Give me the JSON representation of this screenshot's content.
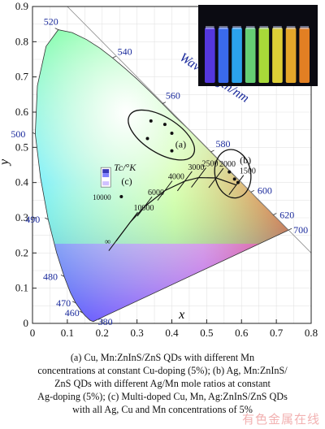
{
  "chart_data": {
    "type": "scatter",
    "title": "",
    "xlabel": "x",
    "ylabel": "y",
    "xlim": [
      0,
      0.8
    ],
    "ylim": [
      0,
      0.9
    ],
    "x_ticks": [
      "0",
      "0.1",
      "0.2",
      "0.3",
      "0.4",
      "0.5",
      "0.6",
      "0.7",
      "0.8"
    ],
    "y_ticks": [
      "0",
      "0.1",
      "0.2",
      "0.3",
      "0.4",
      "0.5",
      "0.6",
      "0.7",
      "0.8",
      "0.9"
    ],
    "grid": true,
    "spectral_locus": [
      {
        "nm": "380",
        "x": 0.174,
        "y": 0.005
      },
      {
        "nm": "460",
        "x": 0.144,
        "y": 0.03
      },
      {
        "nm": "470",
        "x": 0.124,
        "y": 0.058
      },
      {
        "nm": "480",
        "x": 0.091,
        "y": 0.133
      },
      {
        "nm": "490",
        "x": 0.045,
        "y": 0.295
      },
      {
        "nm": "500",
        "x": 0.008,
        "y": 0.538
      },
      {
        "nm": "520",
        "x": 0.074,
        "y": 0.834
      },
      {
        "nm": "540",
        "x": 0.23,
        "y": 0.754
      },
      {
        "nm": "560",
        "x": 0.373,
        "y": 0.624
      },
      {
        "nm": "580",
        "x": 0.512,
        "y": 0.487
      },
      {
        "nm": "600",
        "x": 0.627,
        "y": 0.373
      },
      {
        "nm": "620",
        "x": 0.691,
        "y": 0.308
      },
      {
        "nm": "700",
        "x": 0.735,
        "y": 0.265
      }
    ],
    "locus_axis_label": "Wavelength/nm",
    "planckian_locus": [
      {
        "T": "1500",
        "x": 0.585,
        "y": 0.393
      },
      {
        "T": "2000",
        "x": 0.527,
        "y": 0.413
      },
      {
        "T": "2500",
        "x": 0.477,
        "y": 0.414
      },
      {
        "T": "3000",
        "x": 0.437,
        "y": 0.404
      },
      {
        "T": "4000",
        "x": 0.38,
        "y": 0.377
      },
      {
        "T": "6000",
        "x": 0.322,
        "y": 0.332
      },
      {
        "T": "10000",
        "x": 0.281,
        "y": 0.288
      },
      {
        "T": "∞",
        "x": 0.24,
        "y": 0.234
      }
    ],
    "tc_legend_label": "Tc/°K",
    "tc_legend_value": "10000",
    "groups": [
      {
        "label": "(a)",
        "points": [
          [
            0.34,
            0.575
          ],
          [
            0.38,
            0.565
          ],
          [
            0.4,
            0.54
          ],
          [
            0.33,
            0.525
          ],
          [
            0.4,
            0.49
          ]
        ]
      },
      {
        "label": "(b)",
        "points": [
          [
            0.565,
            0.43
          ],
          [
            0.58,
            0.41
          ],
          [
            0.59,
            0.4
          ]
        ]
      },
      {
        "label": "(c)",
        "points": [
          [
            0.255,
            0.36
          ]
        ]
      }
    ]
  },
  "inset": {
    "name": "QD vials photo",
    "colors": [
      "#5b3cf0",
      "#3f73ff",
      "#2fb0ff",
      "#6fe07d",
      "#b6ec3d",
      "#f0e13a",
      "#f7b52c",
      "#f58a25"
    ]
  },
  "caption": {
    "line1": "(a)  Cu, Mn:ZnInS/ZnS  QDs  with  different  Mn",
    "line2": "concentrations at constant Cu-doping (5%); (b) Ag, Mn:ZnInS/",
    "line3": "ZnS QDs with different Ag/Mn mole ratios at constant",
    "line4": "Ag-doping (5%); (c) Multi-doped Cu, Mn, Ag:ZnInS/ZnS QDs",
    "line5": "with all Ag, Cu and Mn concentrations of 5%"
  },
  "watermark": "有色金属在线"
}
